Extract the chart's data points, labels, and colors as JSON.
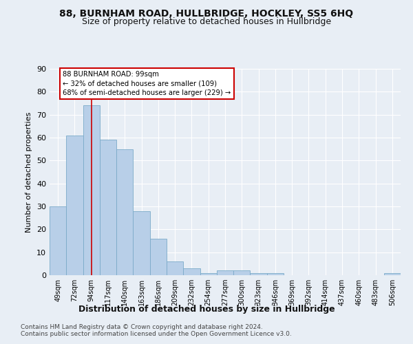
{
  "title1": "88, BURNHAM ROAD, HULLBRIDGE, HOCKLEY, SS5 6HQ",
  "title2": "Size of property relative to detached houses in Hullbridge",
  "xlabel": "Distribution of detached houses by size in Hullbridge",
  "ylabel": "Number of detached properties",
  "categories": [
    "49sqm",
    "72sqm",
    "94sqm",
    "117sqm",
    "140sqm",
    "163sqm",
    "186sqm",
    "209sqm",
    "232sqm",
    "254sqm",
    "277sqm",
    "300sqm",
    "323sqm",
    "346sqm",
    "369sqm",
    "392sqm",
    "414sqm",
    "437sqm",
    "460sqm",
    "483sqm",
    "506sqm"
  ],
  "values": [
    30,
    61,
    74,
    59,
    55,
    28,
    16,
    6,
    3,
    1,
    2,
    2,
    1,
    1,
    0,
    0,
    0,
    0,
    0,
    0,
    1
  ],
  "bar_color": "#b8cfe8",
  "bar_edge_color": "#7aaac8",
  "vline_x": 2,
  "vline_color": "#cc0000",
  "annotation_title": "88 BURNHAM ROAD: 99sqm",
  "annotation_line1": "← 32% of detached houses are smaller (109)",
  "annotation_line2": "68% of semi-detached houses are larger (229) →",
  "annotation_box_facecolor": "#ffffff",
  "annotation_box_edgecolor": "#cc0000",
  "ylim": [
    0,
    90
  ],
  "yticks": [
    0,
    10,
    20,
    30,
    40,
    50,
    60,
    70,
    80,
    90
  ],
  "footer1": "Contains HM Land Registry data © Crown copyright and database right 2024.",
  "footer2": "Contains public sector information licensed under the Open Government Licence v3.0.",
  "bg_color": "#e8eef5",
  "plot_bg_color": "#e8eef5",
  "grid_color": "#ffffff",
  "title1_fontsize": 10,
  "title2_fontsize": 9
}
